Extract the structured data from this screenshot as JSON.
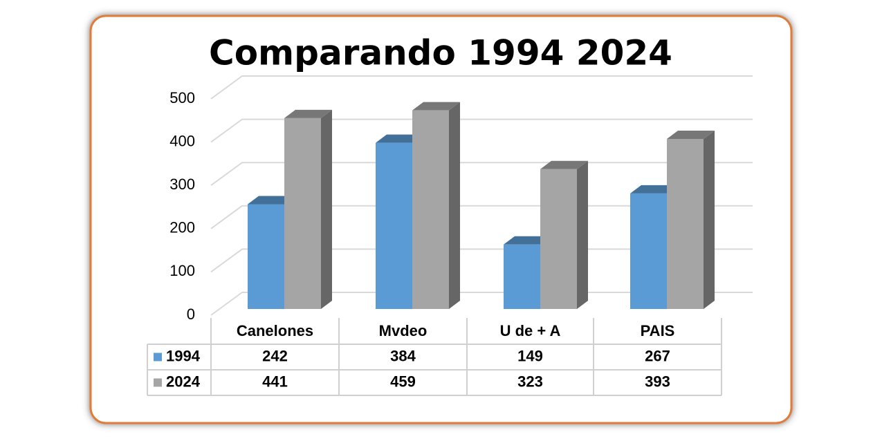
{
  "chart_data": {
    "type": "bar3d",
    "title": "Comparando 1994 2024",
    "categories": [
      "Canelones",
      "Mvdeo",
      "U de + A",
      "PAIS"
    ],
    "series": [
      {
        "name": "1994",
        "color": "#5b9bd5",
        "values": [
          242,
          384,
          149,
          267
        ]
      },
      {
        "name": "2024",
        "color": "#a5a5a5",
        "values": [
          441,
          459,
          323,
          393
        ]
      }
    ],
    "ylim": [
      0,
      500
    ],
    "yticks": [
      0,
      100,
      200,
      300,
      400,
      500
    ],
    "grid": true,
    "data_table": true
  }
}
